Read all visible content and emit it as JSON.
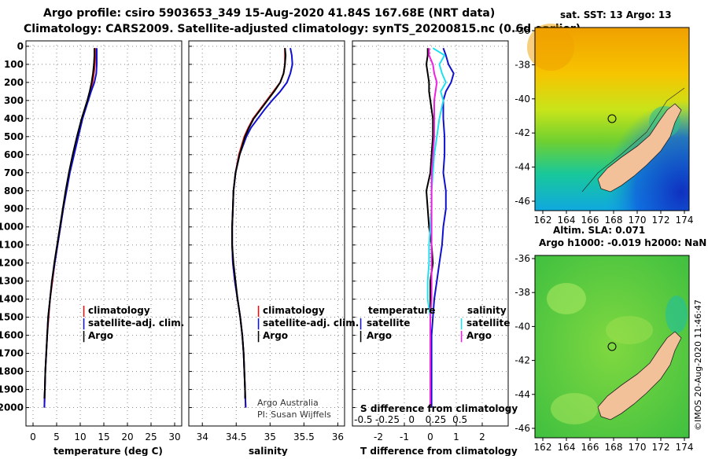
{
  "header": {
    "line1": "Argo profile: csiro 5903653_349 15-Aug-2020 41.84S 167.68E (NRT data)",
    "line2": "Climatology: CARS2009. Satellite-adjusted climatology: synTS_20200815.nc (0.6d earlier)"
  },
  "colors": {
    "argo": "#000000",
    "climatology": "#e01010",
    "satellite": "#1010d0",
    "cyan": "#20e0f0",
    "magenta": "#f020e0",
    "land": "#f2c19a"
  },
  "chart_data": [
    {
      "type": "line",
      "title": "",
      "xlabel": "temperature (deg C)",
      "ylabel": "depth",
      "xlim": [
        -1.5,
        31.5
      ],
      "ylim": [
        2100,
        0
      ],
      "xticks": [
        0,
        5,
        10,
        15,
        20,
        25,
        30
      ],
      "yticks": [
        0,
        100,
        200,
        300,
        400,
        500,
        600,
        700,
        800,
        900,
        1000,
        1100,
        1200,
        1300,
        1400,
        1500,
        1600,
        1700,
        1800,
        1900,
        2000
      ],
      "grid": true,
      "legend": "lower-right",
      "legend_labels": [
        "climatology",
        "satellite-adj. clim.",
        "Argo"
      ],
      "series": [
        {
          "name": "climatology",
          "color": "#e01010",
          "depth": [
            10,
            50,
            100,
            150,
            200,
            250,
            300,
            350,
            400,
            500,
            600,
            700,
            800,
            900,
            1000,
            1100,
            1200,
            1300,
            1400,
            1500,
            1600,
            1700,
            1800,
            1900,
            2000
          ],
          "values": [
            13.2,
            13.2,
            13.1,
            12.9,
            12.6,
            12.1,
            11.6,
            11.0,
            10.4,
            9.4,
            8.5,
            7.7,
            7.0,
            6.4,
            5.8,
            5.2,
            4.6,
            4.1,
            3.6,
            3.3,
            3.0,
            2.8,
            2.6,
            2.5,
            2.4
          ]
        },
        {
          "name": "satellite-adj. clim.",
          "color": "#1010d0",
          "depth": [
            10,
            50,
            100,
            150,
            200,
            250,
            300,
            350,
            400,
            500,
            600,
            700,
            800,
            900,
            1000,
            1100,
            1200,
            1300,
            1400,
            1500,
            1600,
            1700,
            1800,
            1900,
            2000
          ],
          "values": [
            13.5,
            13.5,
            13.5,
            13.4,
            13.0,
            12.3,
            11.7,
            11.1,
            10.5,
            9.6,
            8.7,
            7.8,
            7.1,
            6.4,
            5.8,
            5.2,
            4.6,
            4.0,
            3.6,
            3.2,
            3.0,
            2.8,
            2.6,
            2.5,
            2.4
          ]
        },
        {
          "name": "Argo",
          "color": "#000000",
          "depth": [
            10,
            50,
            100,
            150,
            200,
            250,
            300,
            350,
            400,
            500,
            600,
            700,
            800,
            900,
            1000,
            1100,
            1200,
            1300,
            1400,
            1500,
            1600,
            1700,
            1800,
            1900,
            1950
          ],
          "values": [
            13.0,
            13.0,
            12.9,
            12.7,
            12.4,
            12.0,
            11.5,
            10.9,
            10.3,
            9.3,
            8.4,
            7.6,
            6.9,
            6.3,
            5.7,
            5.1,
            4.5,
            4.0,
            3.6,
            3.2,
            3.0,
            2.8,
            2.6,
            2.5,
            2.4
          ]
        }
      ]
    },
    {
      "type": "line",
      "xlabel": "salinity",
      "xlim": [
        33.8,
        36.1
      ],
      "ylim": [
        2100,
        0
      ],
      "xticks": [
        34,
        34.5,
        35,
        35.5,
        36
      ],
      "grid": true,
      "legend": "lower-right",
      "legend_labels": [
        "climatology",
        "satellite-adj. clim.",
        "Argo"
      ],
      "annotation": [
        "Argo Australia",
        "PI: Susan Wijffels"
      ],
      "series": [
        {
          "name": "climatology",
          "color": "#e01010",
          "depth": [
            10,
            50,
            100,
            150,
            200,
            250,
            300,
            350,
            400,
            450,
            500,
            600,
            700,
            800,
            900,
            1000,
            1100,
            1200,
            1300,
            1400,
            1500,
            1600,
            1700,
            1800,
            1900,
            2000
          ],
          "values": [
            35.22,
            35.22,
            35.22,
            35.2,
            35.15,
            35.05,
            34.95,
            34.85,
            34.75,
            34.68,
            34.62,
            34.54,
            34.49,
            34.46,
            34.45,
            34.44,
            34.44,
            34.45,
            34.48,
            34.52,
            34.56,
            34.59,
            34.61,
            34.62,
            34.63,
            34.64
          ]
        },
        {
          "name": "satellite-adj. clim.",
          "color": "#1010d0",
          "depth": [
            10,
            50,
            100,
            150,
            200,
            250,
            300,
            350,
            400,
            450,
            500,
            600,
            700,
            800,
            900,
            1000,
            1100,
            1200,
            1300,
            1400,
            1500,
            1600,
            1700,
            1800,
            1900,
            2000
          ],
          "values": [
            35.3,
            35.32,
            35.33,
            35.3,
            35.25,
            35.15,
            35.03,
            34.92,
            34.82,
            34.72,
            34.65,
            34.55,
            34.49,
            34.46,
            34.45,
            34.44,
            34.44,
            34.45,
            34.48,
            34.52,
            34.56,
            34.59,
            34.61,
            34.62,
            34.63,
            34.64
          ]
        },
        {
          "name": "Argo",
          "color": "#000000",
          "depth": [
            10,
            50,
            100,
            150,
            200,
            250,
            300,
            350,
            400,
            450,
            500,
            600,
            700,
            800,
            900,
            1000,
            1100,
            1200,
            1300,
            1400,
            1500,
            1600,
            1700,
            1800,
            1900,
            1950
          ],
          "values": [
            35.22,
            35.23,
            35.22,
            35.2,
            35.15,
            35.06,
            34.96,
            34.86,
            34.76,
            34.69,
            34.63,
            34.55,
            34.49,
            34.46,
            34.45,
            34.44,
            34.44,
            34.46,
            34.49,
            34.52,
            34.56,
            34.59,
            34.61,
            34.62,
            34.63,
            34.63
          ]
        }
      ]
    },
    {
      "type": "line",
      "title": "S difference from climatology",
      "xlabel": "T difference from climatology",
      "xlim": [
        -3,
        3
      ],
      "ylim": [
        2100,
        0
      ],
      "xticks": [
        -2,
        -1,
        0,
        1,
        2
      ],
      "top_ticks": [
        "-0.5",
        "-0.25",
        "0",
        "0.25",
        "0.5"
      ],
      "grid": true,
      "legend_left_title": "temperature",
      "legend_right_title": "salinity",
      "legend_left": [
        "satellite",
        "Argo"
      ],
      "legend_right": [
        "satellite",
        "Argo"
      ],
      "series": [
        {
          "name": "temperature satellite",
          "color": "#1010d0",
          "depth": [
            10,
            50,
            100,
            150,
            200,
            250,
            300,
            400,
            500,
            600,
            700,
            800,
            900,
            1000,
            1100,
            1200,
            1300,
            1400,
            1500,
            1600,
            1700,
            1800,
            1900,
            2000
          ],
          "values": [
            0.5,
            0.6,
            0.7,
            0.9,
            0.8,
            0.6,
            0.5,
            0.5,
            0.55,
            0.55,
            0.5,
            0.6,
            0.6,
            0.5,
            0.45,
            0.35,
            0.25,
            0.15,
            0.1,
            0.05,
            0.05,
            0.05,
            0.05,
            0.05
          ]
        },
        {
          "name": "temperature Argo",
          "color": "#000000",
          "depth": [
            10,
            50,
            100,
            150,
            200,
            250,
            300,
            400,
            500,
            600,
            700,
            800,
            900,
            1000,
            1100,
            1200,
            1300,
            1400,
            1500,
            1600,
            1700,
            1800,
            1900,
            2000
          ],
          "values": [
            -0.1,
            -0.1,
            -0.15,
            -0.1,
            -0.05,
            -0.05,
            0.0,
            0.1,
            0.1,
            0.05,
            0.0,
            -0.15,
            -0.1,
            -0.05,
            0.05,
            0.1,
            0.0,
            0.0,
            0.0,
            0.0,
            0.0,
            0.0,
            0.0,
            0.0
          ]
        },
        {
          "name": "salinity satellite",
          "color": "#20e0f0",
          "depth": [
            10,
            50,
            100,
            150,
            200,
            250,
            300,
            400,
            500,
            600,
            700,
            800,
            900,
            1000,
            1100,
            1200,
            1300,
            1400,
            1500,
            1600,
            1700,
            1800,
            1900,
            2000
          ],
          "values": [
            0.1,
            0.55,
            0.35,
            0.45,
            0.6,
            0.4,
            0.5,
            0.35,
            0.25,
            0.15,
            0.1,
            0.05,
            0.05,
            0.0,
            -0.05,
            -0.05,
            -0.1,
            -0.1,
            0.0,
            0.0,
            0.0,
            0.0,
            0.0,
            0.0
          ]
        },
        {
          "name": "salinity Argo",
          "color": "#f020e0",
          "depth": [
            10,
            50,
            100,
            150,
            200,
            250,
            300,
            400,
            500,
            600,
            700,
            800,
            900,
            1000,
            1100,
            1200,
            1300,
            1400,
            1500,
            1600,
            1700,
            1800,
            1900,
            2000
          ],
          "values": [
            -0.05,
            -0.05,
            0.1,
            0.15,
            0.25,
            0.2,
            0.15,
            0.15,
            0.15,
            0.1,
            0.05,
            0.05,
            0.05,
            0.05,
            0.05,
            0.05,
            0.05,
            0.05,
            0.0,
            0.0,
            0.0,
            0.0,
            0.0,
            0.0
          ]
        }
      ]
    }
  ],
  "maps": {
    "top": {
      "title": "sat. SST: 13 Argo: 13",
      "yticks": [
        "-36",
        "-38",
        "-40",
        "-42",
        "-44",
        "-46"
      ],
      "xticks": [
        "162",
        "164",
        "166",
        "168",
        "170",
        "172",
        "174"
      ]
    },
    "bottom": {
      "title1": "Altim. SLA: 0.071",
      "title2": "Argo h1000: -0.019 h2000: NaN",
      "yticks": [
        "-36",
        "-38",
        "-40",
        "-42",
        "-44",
        "-46"
      ],
      "xticks": [
        "162",
        "164",
        "166",
        "168",
        "170",
        "172",
        "174"
      ]
    },
    "credit": "©IMOS 20-Aug-2020 11:46:47"
  }
}
